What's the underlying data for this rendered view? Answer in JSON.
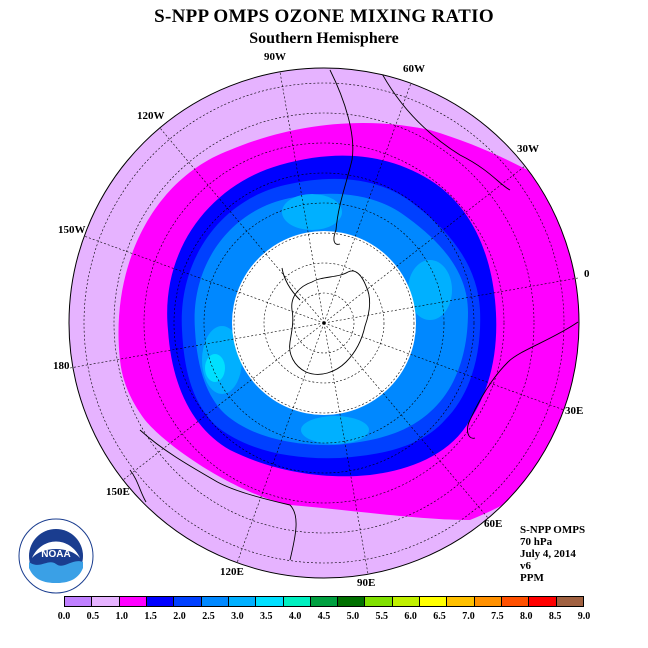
{
  "title": "S-NPP OMPS OZONE MIXING RATIO",
  "subtitle": "Southern Hemisphere",
  "longitude_labels": [
    "90W",
    "60W",
    "30W",
    "120W",
    "150W",
    "0",
    "180",
    "30E",
    "150E",
    "60E",
    "120E",
    "90E"
  ],
  "info": {
    "instrument": "S-NPP OMPS",
    "level": "70 hPa",
    "date": "July 4, 2014",
    "version": "v6",
    "units": "PPM"
  },
  "logo": {
    "text": "NOAA"
  },
  "colorbar": {
    "labels": [
      "0.0",
      "0.5",
      "1.0",
      "1.5",
      "2.0",
      "2.5",
      "3.0",
      "3.5",
      "4.0",
      "4.5",
      "5.0",
      "5.5",
      "6.0",
      "6.5",
      "7.0",
      "7.5",
      "8.0",
      "8.5",
      "9.0"
    ],
    "colors": [
      "#c080ff",
      "#e6b3ff",
      "#ff00ff",
      "#0000ff",
      "#0040ff",
      "#0088ff",
      "#00b0ff",
      "#00e0ff",
      "#00f0c0",
      "#00a040",
      "#007000",
      "#80e000",
      "#c0f000",
      "#ffff00",
      "#ffc000",
      "#ff9000",
      "#ff5000",
      "#ff0000",
      "#a06040"
    ]
  },
  "map_colors": {
    "outer": "#e6b3ff",
    "band_1_0": "#ff00ff",
    "band_1_5": "#0000ff",
    "band_2_0": "#0040ff",
    "band_2_5": "#0088ff",
    "band_3_0": "#00b0ff",
    "band_3_5": "#00e0ff",
    "no_data": "#ffffff"
  }
}
